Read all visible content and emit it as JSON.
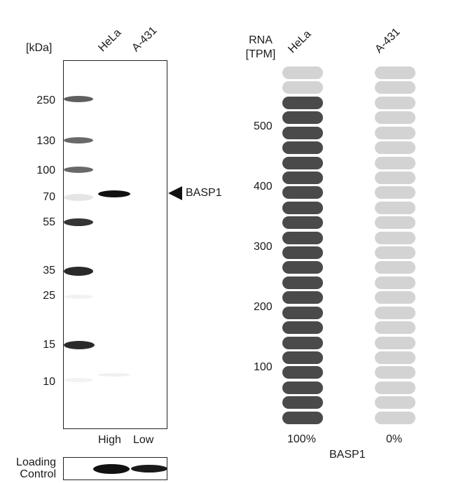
{
  "blot": {
    "unit_label": "[kDa]",
    "lanes": [
      "HeLa",
      "A-431"
    ],
    "mw_markers": [
      "250",
      "130",
      "100",
      "70",
      "55",
      "35",
      "25",
      "15",
      "10"
    ],
    "target_label": "BASP1",
    "expression_levels": [
      "High",
      "Low"
    ],
    "loading_control_label": "Loading\nControl"
  },
  "rna": {
    "axis_title": "RNA\n[TPM]",
    "lanes": [
      "HeLa",
      "A-431"
    ],
    "ticks": [
      "500",
      "400",
      "300",
      "200",
      "100"
    ],
    "percents": [
      "100%",
      "0%"
    ],
    "gene": "BASP1"
  },
  "colors": {
    "filled": "#4a4a4a",
    "empty": "#d3d3d3",
    "frame": "#222222"
  },
  "chart_data": {
    "type": "bar",
    "categories": [
      "HeLa",
      "A-431"
    ],
    "series": [
      {
        "values": [
          560,
          0
        ]
      }
    ],
    "ylabel": "RNA [TPM]",
    "xlabel": "BASP1",
    "yticks": [
      100,
      200,
      300,
      400,
      500
    ],
    "ylim": [
      0,
      580
    ],
    "segments_total": 24,
    "segments_filled": [
      22,
      0
    ],
    "percent_labels": [
      "100%",
      "0%"
    ]
  }
}
